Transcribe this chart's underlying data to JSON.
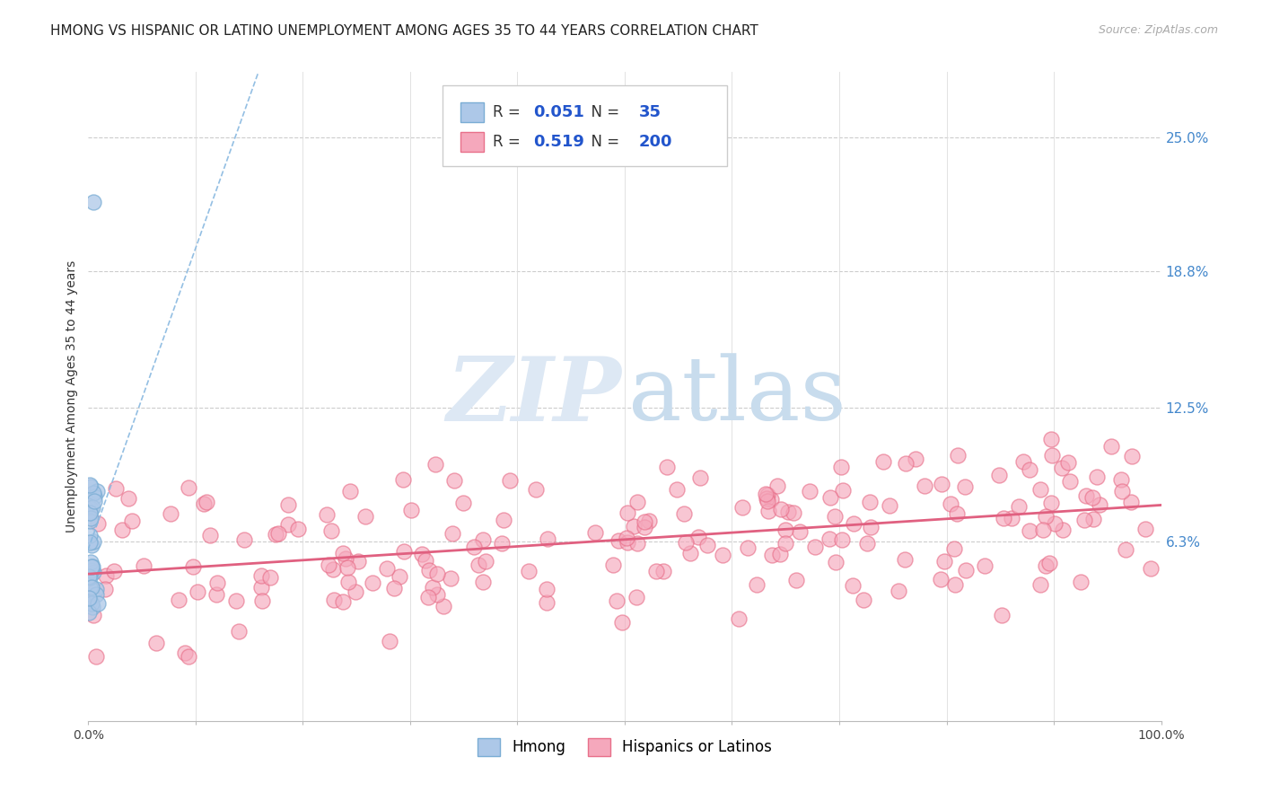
{
  "title": "HMONG VS HISPANIC OR LATINO UNEMPLOYMENT AMONG AGES 35 TO 44 YEARS CORRELATION CHART",
  "source": "Source: ZipAtlas.com",
  "ylabel": "Unemployment Among Ages 35 to 44 years",
  "xlim": [
    0,
    1.0
  ],
  "ylim": [
    -0.02,
    0.28
  ],
  "x_ticks": [
    0.0,
    0.1,
    0.2,
    0.3,
    0.4,
    0.5,
    0.6,
    0.7,
    0.8,
    0.9,
    1.0
  ],
  "y_tick_labels_right": [
    "25.0%",
    "18.8%",
    "12.5%",
    "6.3%"
  ],
  "y_tick_vals_right": [
    0.25,
    0.188,
    0.125,
    0.063
  ],
  "hmong_R": 0.051,
  "hmong_N": 35,
  "hispanic_R": 0.519,
  "hispanic_N": 200,
  "hmong_color": "#adc8e8",
  "hispanic_color": "#f5a8bc",
  "hmong_edge_color": "#7aadd4",
  "hispanic_edge_color": "#e8708a",
  "hmong_line_color": "#88b8e0",
  "hispanic_line_color": "#e06080",
  "background_color": "#ffffff",
  "right_label_color": "#4488cc",
  "title_fontsize": 11,
  "tick_fontsize": 10,
  "seed": 42
}
